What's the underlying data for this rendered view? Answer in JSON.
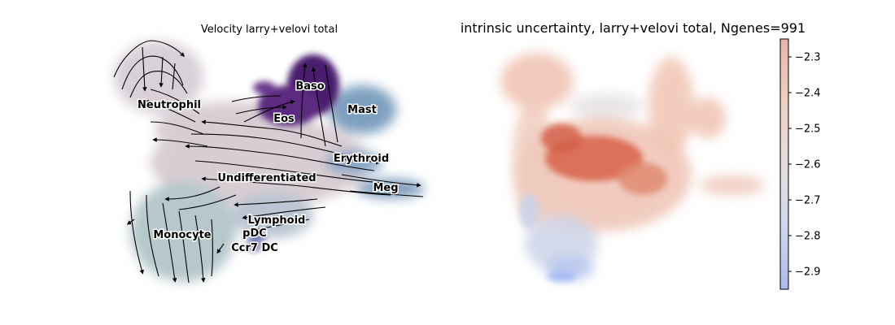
{
  "chart_data": [
    {
      "type": "scatter",
      "title": "Velocity larry+velovi total",
      "cluster_labels": [
        "Neutrophil",
        "Baso",
        "Mast",
        "Eos",
        "Erythroid",
        "Undifferentiated",
        "Meg",
        "Lymphoid",
        "Monocyte",
        "pDC",
        "Ccr7 DC"
      ],
      "palette": {
        "Baso": "#4a1a6e",
        "Eos": "#5b2a80",
        "Mast": "#7d9fbf",
        "Erythroid": "#8aa6c4",
        "Meg": "#7e9dbd",
        "Undifferentiated": "#d8cdd3",
        "Neutrophil": "#d6cfd6",
        "Monocyte": "#b5c7cc",
        "Lymphoid": "#b9c5d3",
        "pDC": "#6a77b8",
        "Ccr7 DC": "#6b52a0"
      },
      "overlay": "velocity streamlines with arrows"
    },
    {
      "type": "scatter",
      "title": "intrinsic uncertainty, larry+velovi total, Ngenes=991",
      "colormap": "coolwarm",
      "colorbar": {
        "ticks": [
          "−2.3",
          "−2.4",
          "−2.5",
          "−2.6",
          "−2.7",
          "−2.8",
          "−2.9"
        ],
        "tick_values": [
          -2.3,
          -2.4,
          -2.5,
          -2.6,
          -2.7,
          -2.8,
          -2.9
        ],
        "range": [
          -2.95,
          -2.25
        ]
      }
    }
  ]
}
